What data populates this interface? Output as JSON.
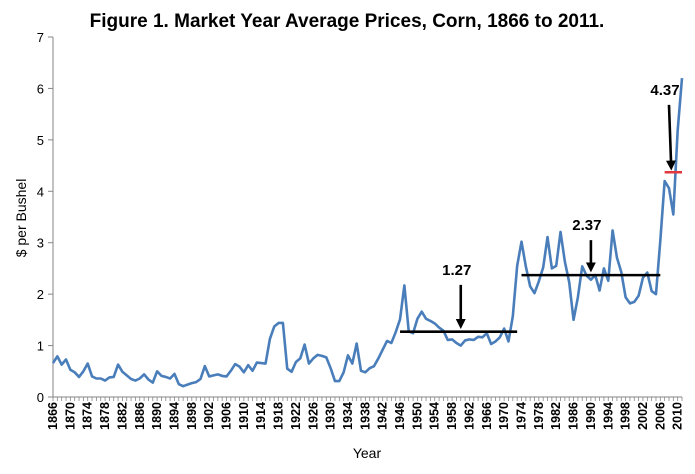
{
  "chart_data": {
    "type": "line",
    "title": "Figure 1.  Market Year Average Prices, Corn, 1866 to 2011.",
    "xlabel": "Year",
    "ylabel": "$ per Bushel",
    "xlim": [
      1866,
      2011
    ],
    "ylim": [
      0,
      7
    ],
    "y_ticks": [
      0,
      1,
      2,
      3,
      4,
      5,
      6,
      7
    ],
    "x_ticks": [
      1866,
      1870,
      1874,
      1878,
      1882,
      1886,
      1890,
      1894,
      1898,
      1902,
      1906,
      1910,
      1914,
      1918,
      1922,
      1926,
      1930,
      1934,
      1938,
      1942,
      1946,
      1950,
      1954,
      1958,
      1962,
      1966,
      1970,
      1974,
      1978,
      1982,
      1986,
      1990,
      1994,
      1998,
      2002,
      2006,
      2010
    ],
    "grid": false,
    "line_color": "#4a7ebb",
    "series": [
      {
        "x": [
          1866,
          1867,
          1868,
          1869,
          1870,
          1871,
          1872,
          1873,
          1874,
          1875,
          1876,
          1877,
          1878,
          1879,
          1880,
          1881,
          1882,
          1883,
          1884,
          1885,
          1886,
          1887,
          1888,
          1889,
          1890,
          1891,
          1892,
          1893,
          1894,
          1895,
          1896,
          1897,
          1898,
          1899,
          1900,
          1901,
          1902,
          1903,
          1904,
          1905,
          1906,
          1907,
          1908,
          1909,
          1910,
          1911,
          1912,
          1913,
          1914,
          1915,
          1916,
          1917,
          1918,
          1919,
          1920,
          1921,
          1922,
          1923,
          1924,
          1925,
          1926,
          1927,
          1928,
          1929,
          1930,
          1931,
          1932,
          1933,
          1934,
          1935,
          1936,
          1937,
          1938,
          1939,
          1940,
          1941,
          1942,
          1943,
          1944,
          1945,
          1946,
          1947,
          1948,
          1949,
          1950,
          1951,
          1952,
          1953,
          1954,
          1955,
          1956,
          1957,
          1958,
          1959,
          1960,
          1961,
          1962,
          1963,
          1964,
          1965,
          1966,
          1967,
          1968,
          1969,
          1970,
          1971,
          1972,
          1973,
          1974,
          1975,
          1976,
          1977,
          1978,
          1979,
          1980,
          1981,
          1982,
          1983,
          1984,
          1985,
          1986,
          1987,
          1988,
          1989,
          1990,
          1991,
          1992,
          1993,
          1994,
          1995,
          1996,
          1997,
          1998,
          1999,
          2000,
          2001,
          2002,
          2003,
          2004,
          2005,
          2006,
          2007,
          2008,
          2009,
          2010,
          2011
        ],
        "values": [
          0.66,
          0.79,
          0.63,
          0.73,
          0.53,
          0.48,
          0.39,
          0.5,
          0.65,
          0.4,
          0.36,
          0.36,
          0.32,
          0.38,
          0.39,
          0.63,
          0.49,
          0.42,
          0.35,
          0.32,
          0.36,
          0.44,
          0.34,
          0.28,
          0.5,
          0.41,
          0.39,
          0.36,
          0.45,
          0.25,
          0.21,
          0.24,
          0.27,
          0.29,
          0.35,
          0.6,
          0.4,
          0.42,
          0.44,
          0.41,
          0.4,
          0.51,
          0.64,
          0.59,
          0.48,
          0.62,
          0.51,
          0.67,
          0.66,
          0.65,
          1.13,
          1.37,
          1.44,
          1.44,
          0.55,
          0.49,
          0.68,
          0.75,
          1.02,
          0.65,
          0.75,
          0.82,
          0.8,
          0.77,
          0.56,
          0.31,
          0.31,
          0.48,
          0.81,
          0.65,
          1.04,
          0.51,
          0.48,
          0.56,
          0.6,
          0.75,
          0.92,
          1.09,
          1.05,
          1.26,
          1.51,
          2.17,
          1.28,
          1.24,
          1.52,
          1.66,
          1.52,
          1.48,
          1.43,
          1.35,
          1.29,
          1.11,
          1.12,
          1.05,
          1.0,
          1.1,
          1.12,
          1.11,
          1.17,
          1.16,
          1.24,
          1.03,
          1.08,
          1.16,
          1.33,
          1.08,
          1.57,
          2.55,
          3.02,
          2.54,
          2.15,
          2.02,
          2.25,
          2.52,
          3.11,
          2.5,
          2.55,
          3.21,
          2.63,
          2.23,
          1.5,
          1.94,
          2.54,
          2.36,
          2.28,
          2.37,
          2.07,
          2.5,
          2.26,
          3.24,
          2.71,
          2.43,
          1.94,
          1.82,
          1.85,
          1.97,
          2.32,
          2.42,
          2.06,
          2.0,
          3.04,
          4.2,
          4.06,
          3.55,
          5.18,
          6.2
        ]
      }
    ],
    "reference_lines": [
      {
        "label": "1.27",
        "value": 1.27,
        "x_start": 1946,
        "x_end": 1973,
        "color": "#000000"
      },
      {
        "label": "2.37",
        "value": 2.37,
        "x_start": 1974,
        "x_end": 2006,
        "color": "#000000"
      },
      {
        "label": "4.37",
        "value": 4.37,
        "x_start": 2007,
        "x_end": 2011,
        "color": "#e0383e"
      }
    ],
    "annotations": [
      {
        "text": "1.27",
        "arrow_from": [
          1960,
          2.18
        ],
        "arrow_to": [
          1960,
          1.42
        ]
      },
      {
        "text": "2.37",
        "arrow_from": [
          1990,
          3.05
        ],
        "arrow_to": [
          1990,
          2.52
        ]
      },
      {
        "text": "4.37",
        "arrow_from": [
          2008,
          5.68
        ],
        "arrow_to": [
          2008.5,
          4.5
        ]
      }
    ]
  }
}
